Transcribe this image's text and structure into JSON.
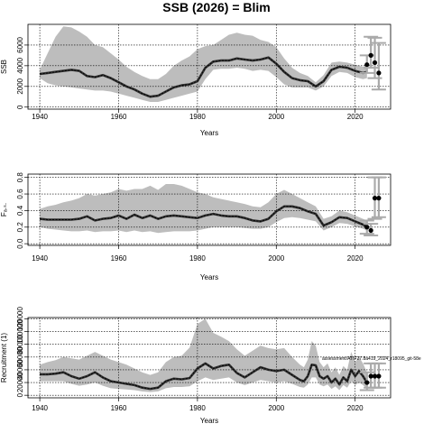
{
  "title": "SSB (2026)  = Blim",
  "chart_data": [
    {
      "type": "line",
      "xlabel": "Years",
      "ylabel": "SSB",
      "xlim": [
        1937,
        2029
      ],
      "ylim": [
        -200,
        8000
      ],
      "xticks": [
        1940,
        1960,
        1980,
        2000,
        2020
      ],
      "yticks": [
        0,
        2000,
        4000,
        6000
      ],
      "grid": true,
      "years": [
        1940,
        1942,
        1944,
        1946,
        1948,
        1950,
        1952,
        1954,
        1956,
        1958,
        1960,
        1962,
        1964,
        1966,
        1968,
        1970,
        1972,
        1974,
        1976,
        1978,
        1980,
        1982,
        1984,
        1986,
        1988,
        1990,
        1992,
        1994,
        1996,
        1998,
        2000,
        2002,
        2004,
        2006,
        2008,
        2010,
        2012,
        2014,
        2016,
        2018,
        2020,
        2022,
        2023
      ],
      "estimate": [
        3200,
        3300,
        3400,
        3500,
        3600,
        3500,
        3000,
        2900,
        3100,
        2800,
        2400,
        2000,
        1700,
        1300,
        1000,
        1100,
        1500,
        1900,
        2100,
        2200,
        2500,
        3800,
        4400,
        4500,
        4500,
        4700,
        4600,
        4500,
        4600,
        4800,
        4200,
        3400,
        2800,
        2600,
        2500,
        2000,
        2500,
        3600,
        3900,
        3800,
        3500,
        3300,
        3400
      ],
      "upper": [
        3600,
        5200,
        6800,
        7800,
        7700,
        7300,
        6800,
        6000,
        5800,
        5200,
        4600,
        3900,
        3400,
        3000,
        2700,
        2700,
        3200,
        4000,
        4500,
        4900,
        5600,
        5900,
        6000,
        6500,
        7000,
        7200,
        7000,
        6900,
        6500,
        6300,
        5800,
        4700,
        3800,
        3300,
        3000,
        2400,
        3100,
        4300,
        4400,
        4300,
        4100,
        3900,
        4000
      ],
      "lower": [
        2800,
        2300,
        2100,
        2000,
        1900,
        1800,
        1700,
        1600,
        1600,
        1500,
        1300,
        1100,
        900,
        700,
        500,
        500,
        700,
        900,
        1100,
        1300,
        1500,
        2700,
        3600,
        3700,
        3700,
        3800,
        3700,
        3500,
        3600,
        3500,
        2900,
        2200,
        1900,
        1900,
        1900,
        1600,
        2000,
        3000,
        3400,
        3300,
        2900,
        2700,
        2800
      ],
      "projection_points": [
        {
          "year": 2023,
          "value": 4100,
          "low": 3300,
          "high": 5000
        },
        {
          "year": 2024,
          "value": 5000,
          "low": 3800,
          "high": 6800
        },
        {
          "year": 2025,
          "value": 4300,
          "low": 2800,
          "high": 6700
        },
        {
          "year": 2026,
          "value": 3300,
          "low": 1700,
          "high": 6200
        }
      ]
    },
    {
      "type": "line",
      "xlabel": "Years",
      "ylabel": "Fₐ.ₛ.",
      "xlim": [
        1937,
        2029
      ],
      "ylim": [
        -0.02,
        0.84
      ],
      "xticks": [
        1940,
        1960,
        1980,
        2000,
        2020
      ],
      "yticks": [
        0.0,
        0.2,
        0.4,
        0.6,
        0.8
      ],
      "ytick_labels": [
        "0.0",
        "0.2",
        "0.4",
        "0.6",
        "0.8"
      ],
      "grid": true,
      "years": [
        1940,
        1942,
        1944,
        1946,
        1948,
        1950,
        1952,
        1954,
        1956,
        1958,
        1960,
        1962,
        1964,
        1966,
        1968,
        1970,
        1972,
        1974,
        1976,
        1978,
        1980,
        1982,
        1984,
        1986,
        1988,
        1990,
        1992,
        1994,
        1996,
        1998,
        2000,
        2002,
        2004,
        2006,
        2008,
        2010,
        2012,
        2014,
        2016,
        2018,
        2020,
        2022,
        2023
      ],
      "estimate": [
        0.3,
        0.29,
        0.29,
        0.29,
        0.29,
        0.3,
        0.33,
        0.28,
        0.3,
        0.31,
        0.34,
        0.3,
        0.35,
        0.31,
        0.34,
        0.3,
        0.33,
        0.34,
        0.33,
        0.32,
        0.31,
        0.34,
        0.36,
        0.34,
        0.33,
        0.33,
        0.31,
        0.28,
        0.27,
        0.3,
        0.39,
        0.45,
        0.45,
        0.43,
        0.39,
        0.36,
        0.22,
        0.26,
        0.32,
        0.31,
        0.27,
        0.23,
        0.21
      ],
      "upper": [
        0.42,
        0.45,
        0.47,
        0.5,
        0.52,
        0.55,
        0.6,
        0.58,
        0.6,
        0.62,
        0.66,
        0.64,
        0.66,
        0.66,
        0.7,
        0.65,
        0.72,
        0.72,
        0.7,
        0.66,
        0.62,
        0.6,
        0.56,
        0.54,
        0.52,
        0.5,
        0.48,
        0.45,
        0.44,
        0.5,
        0.6,
        0.65,
        0.6,
        0.55,
        0.5,
        0.45,
        0.3,
        0.33,
        0.4,
        0.38,
        0.34,
        0.3,
        0.28
      ],
      "lower": [
        0.2,
        0.18,
        0.17,
        0.16,
        0.15,
        0.15,
        0.16,
        0.14,
        0.15,
        0.15,
        0.16,
        0.14,
        0.16,
        0.14,
        0.15,
        0.13,
        0.14,
        0.15,
        0.15,
        0.15,
        0.16,
        0.18,
        0.2,
        0.2,
        0.2,
        0.2,
        0.19,
        0.18,
        0.18,
        0.2,
        0.26,
        0.31,
        0.32,
        0.31,
        0.29,
        0.27,
        0.16,
        0.2,
        0.25,
        0.24,
        0.21,
        0.18,
        0.16
      ],
      "projection_points": [
        {
          "year": 2023,
          "value": 0.2,
          "low": 0.12,
          "high": 0.28
        },
        {
          "year": 2024,
          "value": 0.16,
          "low": 0.1,
          "high": 0.24
        },
        {
          "year": 2025,
          "value": 0.55,
          "low": 0.3,
          "high": 0.8
        },
        {
          "year": 2026,
          "value": 0.55,
          "low": 0.32,
          "high": 0.8
        }
      ]
    },
    {
      "type": "line",
      "xlabel": "Years",
      "ylabel": "Recruitment (1)",
      "xlim": [
        1937,
        2029
      ],
      "ylim": [
        -4000,
        122000
      ],
      "xticks": [
        1940,
        1960,
        1980,
        2000,
        2020
      ],
      "yticks": [
        0,
        20000,
        40000,
        60000,
        80000,
        100000,
        120000
      ],
      "grid": true,
      "note": "assessment/ATIF27.8a419_2024_r18095_git-58e",
      "years": [
        1940,
        1942,
        1944,
        1946,
        1948,
        1950,
        1952,
        1954,
        1956,
        1958,
        1960,
        1962,
        1964,
        1966,
        1968,
        1970,
        1972,
        1974,
        1976,
        1978,
        1980,
        1982,
        1984,
        1986,
        1988,
        1990,
        1992,
        1994,
        1996,
        1998,
        2000,
        2002,
        2004,
        2006,
        2007,
        2008,
        2009,
        2010,
        2011,
        2012,
        2013,
        2014,
        2015,
        2016,
        2017,
        2018,
        2019,
        2020,
        2021,
        2022,
        2023
      ],
      "estimate": [
        33000,
        33000,
        34000,
        36000,
        30000,
        26000,
        30000,
        36000,
        28000,
        22000,
        20000,
        18000,
        16000,
        12000,
        10000,
        12000,
        22000,
        26000,
        25000,
        27000,
        42000,
        50000,
        42000,
        46000,
        48000,
        35000,
        28000,
        36000,
        44000,
        40000,
        38000,
        40000,
        32000,
        24000,
        22000,
        30000,
        48000,
        47000,
        30000,
        26000,
        30000,
        20000,
        26000,
        17000,
        28000,
        22000,
        40000,
        30000,
        38000,
        30000,
        20000
      ],
      "upper": [
        48000,
        52000,
        55000,
        60000,
        58000,
        56000,
        62000,
        68000,
        62000,
        56000,
        52000,
        48000,
        42000,
        36000,
        32000,
        36000,
        52000,
        60000,
        62000,
        75000,
        112000,
        120000,
        98000,
        92000,
        85000,
        72000,
        62000,
        70000,
        78000,
        74000,
        72000,
        74000,
        60000,
        48000,
        44000,
        56000,
        85000,
        78000,
        52000,
        44000,
        50000,
        36000,
        44000,
        32000,
        46000,
        40000,
        68000,
        52000,
        60000,
        50000,
        36000
      ],
      "lower": [
        22000,
        22000,
        22000,
        22000,
        18000,
        15000,
        17000,
        20000,
        15000,
        11000,
        10000,
        9000,
        8000,
        6000,
        5000,
        6000,
        11000,
        13000,
        13000,
        14000,
        22000,
        28000,
        24000,
        26000,
        28000,
        20000,
        16000,
        20000,
        24000,
        22000,
        20000,
        22000,
        18000,
        13000,
        12000,
        17000,
        28000,
        28000,
        17000,
        14000,
        17000,
        10000,
        14000,
        8000,
        16000,
        12000,
        22000,
        16000,
        20000,
        16000,
        10000
      ],
      "projection_points": [
        {
          "year": 2023,
          "value": 20000,
          "low": 8000,
          "high": 36000
        },
        {
          "year": 2024,
          "value": 30000,
          "low": 12000,
          "high": 50000
        },
        {
          "year": 2025,
          "value": 30000,
          "low": 12000,
          "high": 50000
        },
        {
          "year": 2026,
          "value": 30000,
          "low": 12000,
          "high": 50000
        }
      ]
    }
  ]
}
